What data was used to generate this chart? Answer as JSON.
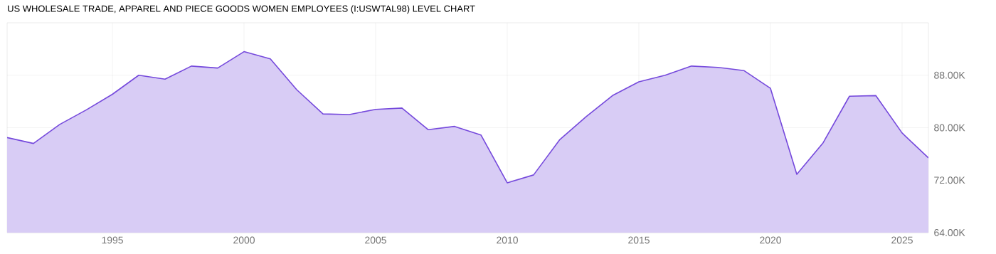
{
  "chart_data": {
    "type": "area",
    "title": "US WHOLESALE TRADE, APPAREL AND PIECE GOODS WOMEN EMPLOYEES (I:USWTAL98) LEVEL CHART",
    "x": [
      1991,
      1992,
      1993,
      1994,
      1995,
      1996,
      1997,
      1998,
      1999,
      2000,
      2001,
      2002,
      2003,
      2004,
      2005,
      2006,
      2007,
      2008,
      2009,
      2010,
      2011,
      2012,
      2013,
      2014,
      2015,
      2016,
      2017,
      2018,
      2019,
      2020,
      2021,
      2022,
      2023,
      2024,
      2025,
      2026
    ],
    "series": [
      {
        "color": "#7549dc",
        "values": [
          78.5,
          77.6,
          80.5,
          82.7,
          85.1,
          88.0,
          87.4,
          89.4,
          89.1,
          91.6,
          90.5,
          85.8,
          82.1,
          82.0,
          82.8,
          83.0,
          79.7,
          80.2,
          78.9,
          71.6,
          72.8,
          78.2,
          81.7,
          84.9,
          87.0,
          88.0,
          89.4,
          89.2,
          88.7,
          86.0,
          72.9,
          77.7,
          84.8,
          84.9,
          79.2,
          75.4
        ]
      }
    ],
    "xlim": [
      1991,
      2026
    ],
    "xticks": [
      1995,
      2000,
      2005,
      2010,
      2015,
      2020,
      2025
    ],
    "ylim": [
      64,
      96
    ],
    "yticks": [
      {
        "value": 64,
        "label": "64.00K"
      },
      {
        "value": 72,
        "label": "72.00K"
      },
      {
        "value": 80,
        "label": "80.00K"
      },
      {
        "value": 88,
        "label": "88.00K"
      }
    ],
    "grid": true
  }
}
